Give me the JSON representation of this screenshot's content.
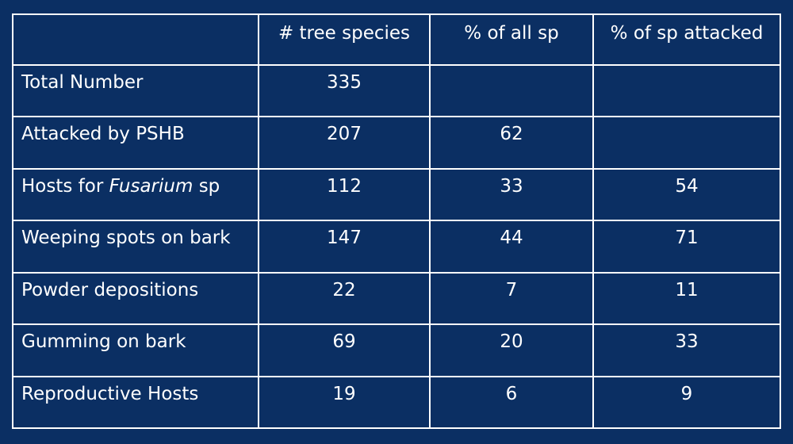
{
  "table": {
    "headers": [
      "",
      "# tree species",
      "% of all sp",
      "% of sp attacked"
    ],
    "rows": [
      {
        "label": "Total Number",
        "label_pre": "",
        "label_italic": "",
        "label_post": "",
        "tree_species": "335",
        "pct_all": "",
        "pct_attacked": ""
      },
      {
        "label": "Attacked by PSHB",
        "label_pre": "",
        "label_italic": "",
        "label_post": "",
        "tree_species": "207",
        "pct_all": "62",
        "pct_attacked": ""
      },
      {
        "label": "",
        "label_pre": "Hosts for ",
        "label_italic": "Fusarium",
        "label_post": " sp",
        "tree_species": "112",
        "pct_all": "33",
        "pct_attacked": "54"
      },
      {
        "label": "Weeping spots on bark",
        "label_pre": "",
        "label_italic": "",
        "label_post": "",
        "tree_species": "147",
        "pct_all": "44",
        "pct_attacked": "71"
      },
      {
        "label": "Powder depositions",
        "label_pre": "",
        "label_italic": "",
        "label_post": "",
        "tree_species": "22",
        "pct_all": "7",
        "pct_attacked": "11"
      },
      {
        "label": "Gumming on bark",
        "label_pre": "",
        "label_italic": "",
        "label_post": "",
        "tree_species": "69",
        "pct_all": "20",
        "pct_attacked": "33"
      },
      {
        "label": "Reproductive Hosts",
        "label_pre": "",
        "label_italic": "",
        "label_post": "",
        "tree_species": "19",
        "pct_all": "6",
        "pct_attacked": "9"
      }
    ]
  },
  "colors": {
    "background": "#0b2f63",
    "text": "#ffffff",
    "grid": "#ffffff"
  }
}
